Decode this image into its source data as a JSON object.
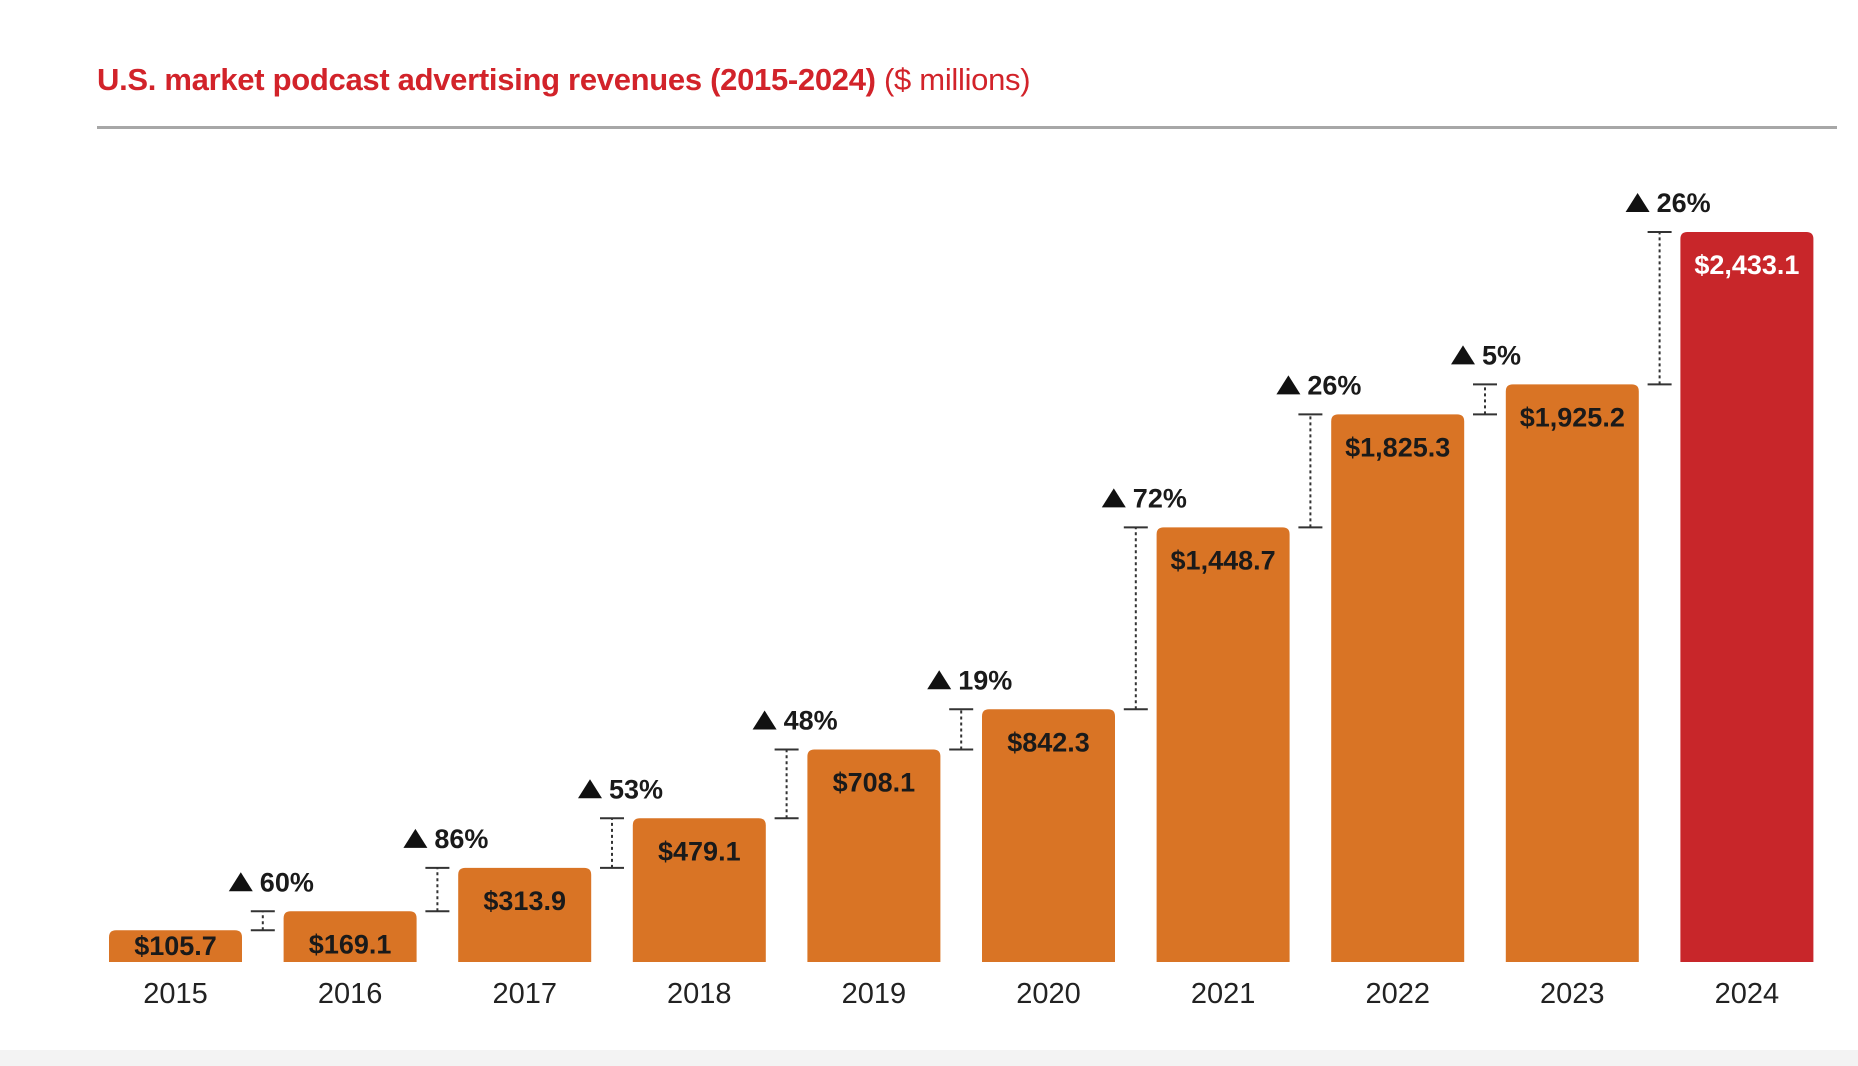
{
  "chart_data": {
    "type": "bar",
    "title": "U.S. market podcast advertising revenues (2015-2024)",
    "title_unit": "($ millions)",
    "categories": [
      "2015",
      "2016",
      "2017",
      "2018",
      "2019",
      "2020",
      "2021",
      "2022",
      "2023",
      "2024"
    ],
    "values": [
      105.7,
      169.1,
      313.9,
      479.1,
      708.1,
      842.3,
      1448.7,
      1825.3,
      1925.2,
      2433.1
    ],
    "value_labels": [
      "$105.7",
      "$169.1",
      "$313.9",
      "$479.1",
      "$708.1",
      "$842.3",
      "$1,448.7",
      "$1,825.3",
      "$1,925.2",
      "$2,433.1"
    ],
    "growth": [
      {
        "from": "2015",
        "to": "2016",
        "label": "60%"
      },
      {
        "from": "2016",
        "to": "2017",
        "label": "86%"
      },
      {
        "from": "2017",
        "to": "2018",
        "label": "53%"
      },
      {
        "from": "2018",
        "to": "2019",
        "label": "48%"
      },
      {
        "from": "2019",
        "to": "2020",
        "label": "19%"
      },
      {
        "from": "2020",
        "to": "2021",
        "label": "72%"
      },
      {
        "from": "2021",
        "to": "2022",
        "label": "26%"
      },
      {
        "from": "2022",
        "to": "2023",
        "label": "5%"
      },
      {
        "from": "2023",
        "to": "2024",
        "label": "26%"
      }
    ],
    "xlabel": "",
    "ylabel": "",
    "ylim": [
      0,
      2433.1
    ],
    "grid": false,
    "legend": "none",
    "colors": {
      "bar": "#d97425",
      "highlight_bar": "#c8262a",
      "highlight_category": "2024",
      "title": "#d2232a",
      "label_dark": "#1a1a1a",
      "label_light": "#ffffff"
    }
  }
}
